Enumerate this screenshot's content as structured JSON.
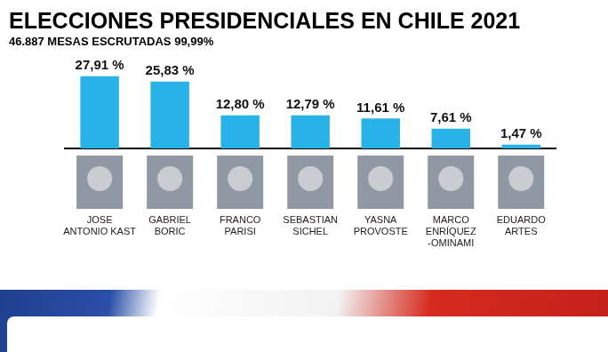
{
  "chart_data": {
    "type": "bar",
    "title": "ELECCIONES PRESIDENCIALES EN CHILE 2021",
    "subtitle": "46.887 MESAS ESCRUTADAS 99,99%",
    "categories": [
      "JOSE\nANTONIO KAST",
      "GABRIEL\nBORIC",
      "FRANCO\nPARISI",
      "SEBASTIAN\nSICHEL",
      "YASNA\nPROVOSTE",
      "MARCO\nENRÍQUEZ\n-OMINAMI",
      "EDUARDO\nARTES"
    ],
    "values": [
      27.91,
      25.83,
      12.8,
      12.79,
      11.61,
      7.61,
      1.47
    ],
    "value_labels": [
      "27,91 %",
      "25,83 %",
      "12,80 %",
      "12,79 %",
      "11,61 %",
      "7,61 %",
      "1,47 %"
    ],
    "color": "#29b2e8",
    "data_labels": true,
    "grid": false,
    "tick_labels": "x"
  }
}
